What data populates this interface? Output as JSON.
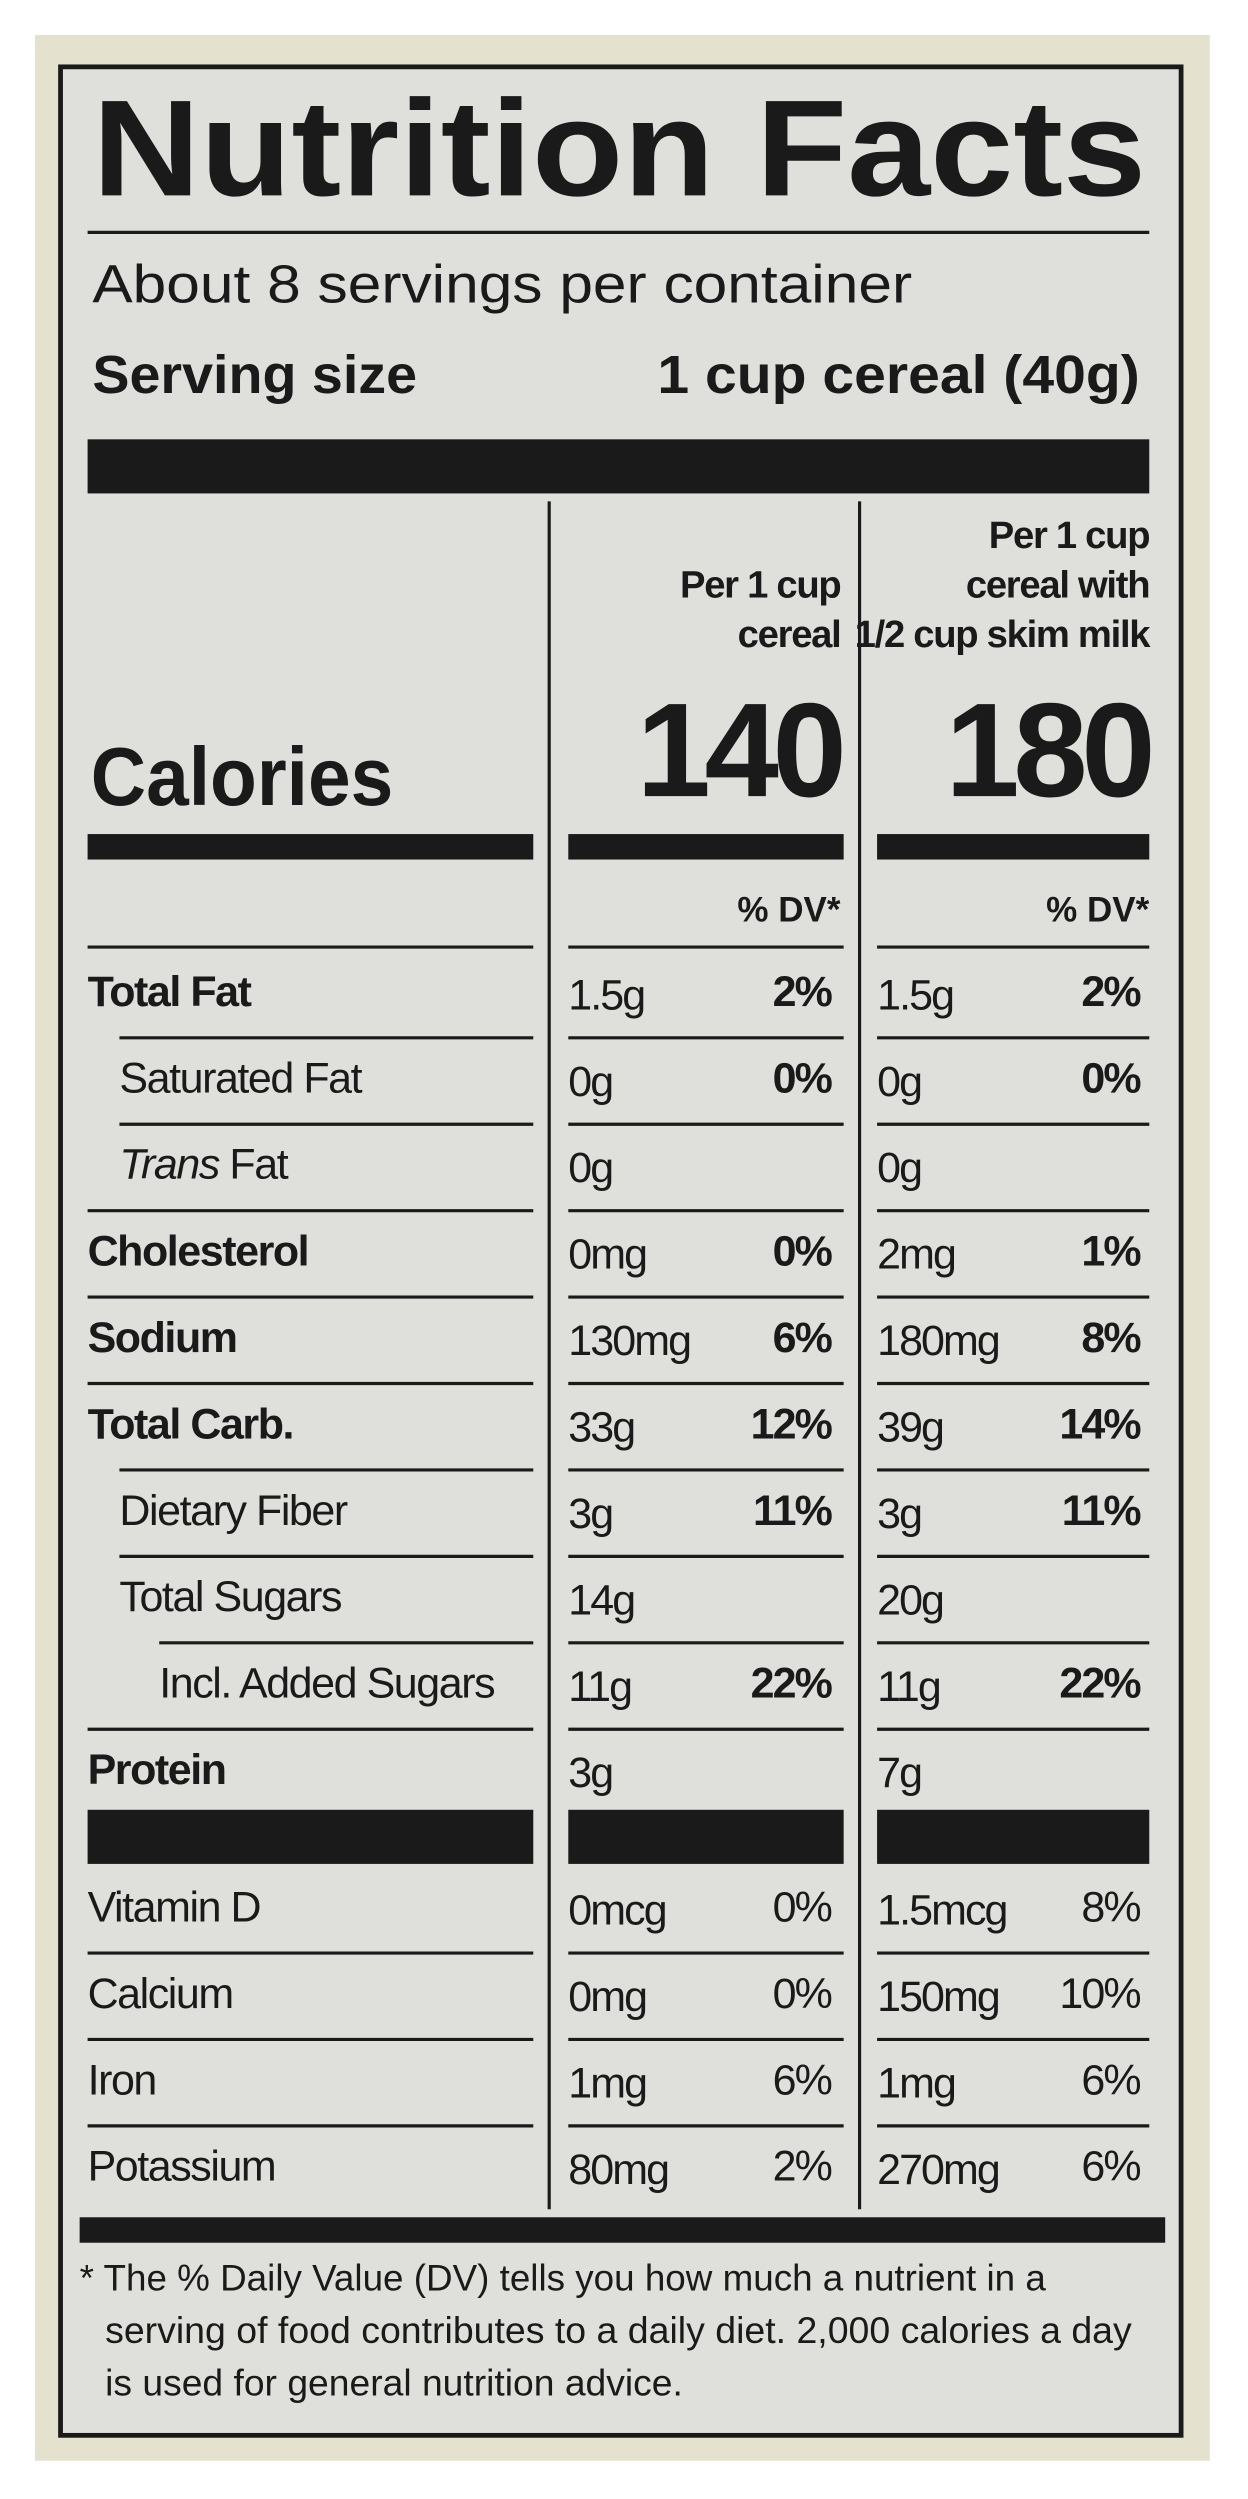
{
  "header": {
    "title": "Nutrition Facts",
    "servings": "About 8 servings per container",
    "serving_size_label": "Serving size",
    "serving_size": "1 cup cereal (40g)"
  },
  "calories_label": "Calories",
  "columns": [
    {
      "heading": [
        "Per 1 cup",
        "cereal"
      ],
      "calories": 140,
      "dv_header": "% DV*"
    },
    {
      "heading": [
        "Per 1 cup",
        "cereal with",
        "1/2 cup skim milk"
      ],
      "calories": 180,
      "dv_header": "% DV*"
    }
  ],
  "nutrients": [
    {
      "name": "Total Fat",
      "bold": true,
      "level": 0,
      "values": [
        [
          "1.5g",
          "2%"
        ],
        [
          "1.5g",
          "2%"
        ]
      ]
    },
    {
      "name": "Saturated Fat",
      "bold": false,
      "level": 1,
      "values": [
        [
          "0g",
          "0%"
        ],
        [
          "0g",
          "0%"
        ]
      ]
    },
    {
      "italic_prefix": "Trans",
      "name": "Fat",
      "bold": false,
      "level": 1,
      "values": [
        [
          "0g"
        ],
        [
          "0g"
        ]
      ]
    },
    {
      "name": "Cholesterol",
      "bold": true,
      "level": 0,
      "values": [
        [
          "0mg",
          "0%"
        ],
        [
          "2mg",
          "1%"
        ]
      ]
    },
    {
      "name": "Sodium",
      "bold": true,
      "level": 0,
      "values": [
        [
          "130mg",
          "6%"
        ],
        [
          "180mg",
          "8%"
        ]
      ]
    },
    {
      "name": "Total Carb.",
      "bold": true,
      "level": 0,
      "values": [
        [
          "33g",
          "12%"
        ],
        [
          "39g",
          "14%"
        ]
      ]
    },
    {
      "name": "Dietary Fiber",
      "bold": false,
      "level": 1,
      "values": [
        [
          "3g",
          "11%"
        ],
        [
          "3g",
          "11%"
        ]
      ]
    },
    {
      "name": "Total Sugars",
      "bold": false,
      "level": 1,
      "values": [
        [
          "14g"
        ],
        [
          "20g"
        ]
      ]
    },
    {
      "name": "Incl. Added Sugars",
      "bold": false,
      "level": 2,
      "values": [
        [
          "11g",
          "22%"
        ],
        [
          "11g",
          "22%"
        ]
      ]
    },
    {
      "name": "Protein",
      "bold": true,
      "level": 0,
      "values": [
        [
          "3g"
        ],
        [
          "7g"
        ]
      ]
    }
  ],
  "vitamins": [
    {
      "name": "Vitamin D",
      "values": [
        [
          "0mcg",
          "0%"
        ],
        [
          "1.5mcg",
          "8%"
        ]
      ]
    },
    {
      "name": "Calcium",
      "values": [
        [
          "0mg",
          "0%"
        ],
        [
          "150mg",
          "10%"
        ]
      ]
    },
    {
      "name": "Iron",
      "values": [
        [
          "1mg",
          "6%"
        ],
        [
          "1mg",
          "6%"
        ]
      ]
    },
    {
      "name": "Potassium",
      "values": [
        [
          "80mg",
          "2%"
        ],
        [
          "270mg",
          "6%"
        ]
      ]
    }
  ],
  "footnote": [
    "* The % Daily Value (DV) tells you how much a nutrient in a",
    "serving of food contributes to a daily diet. 2,000 calories a day",
    "is used for general nutrition advice."
  ]
}
